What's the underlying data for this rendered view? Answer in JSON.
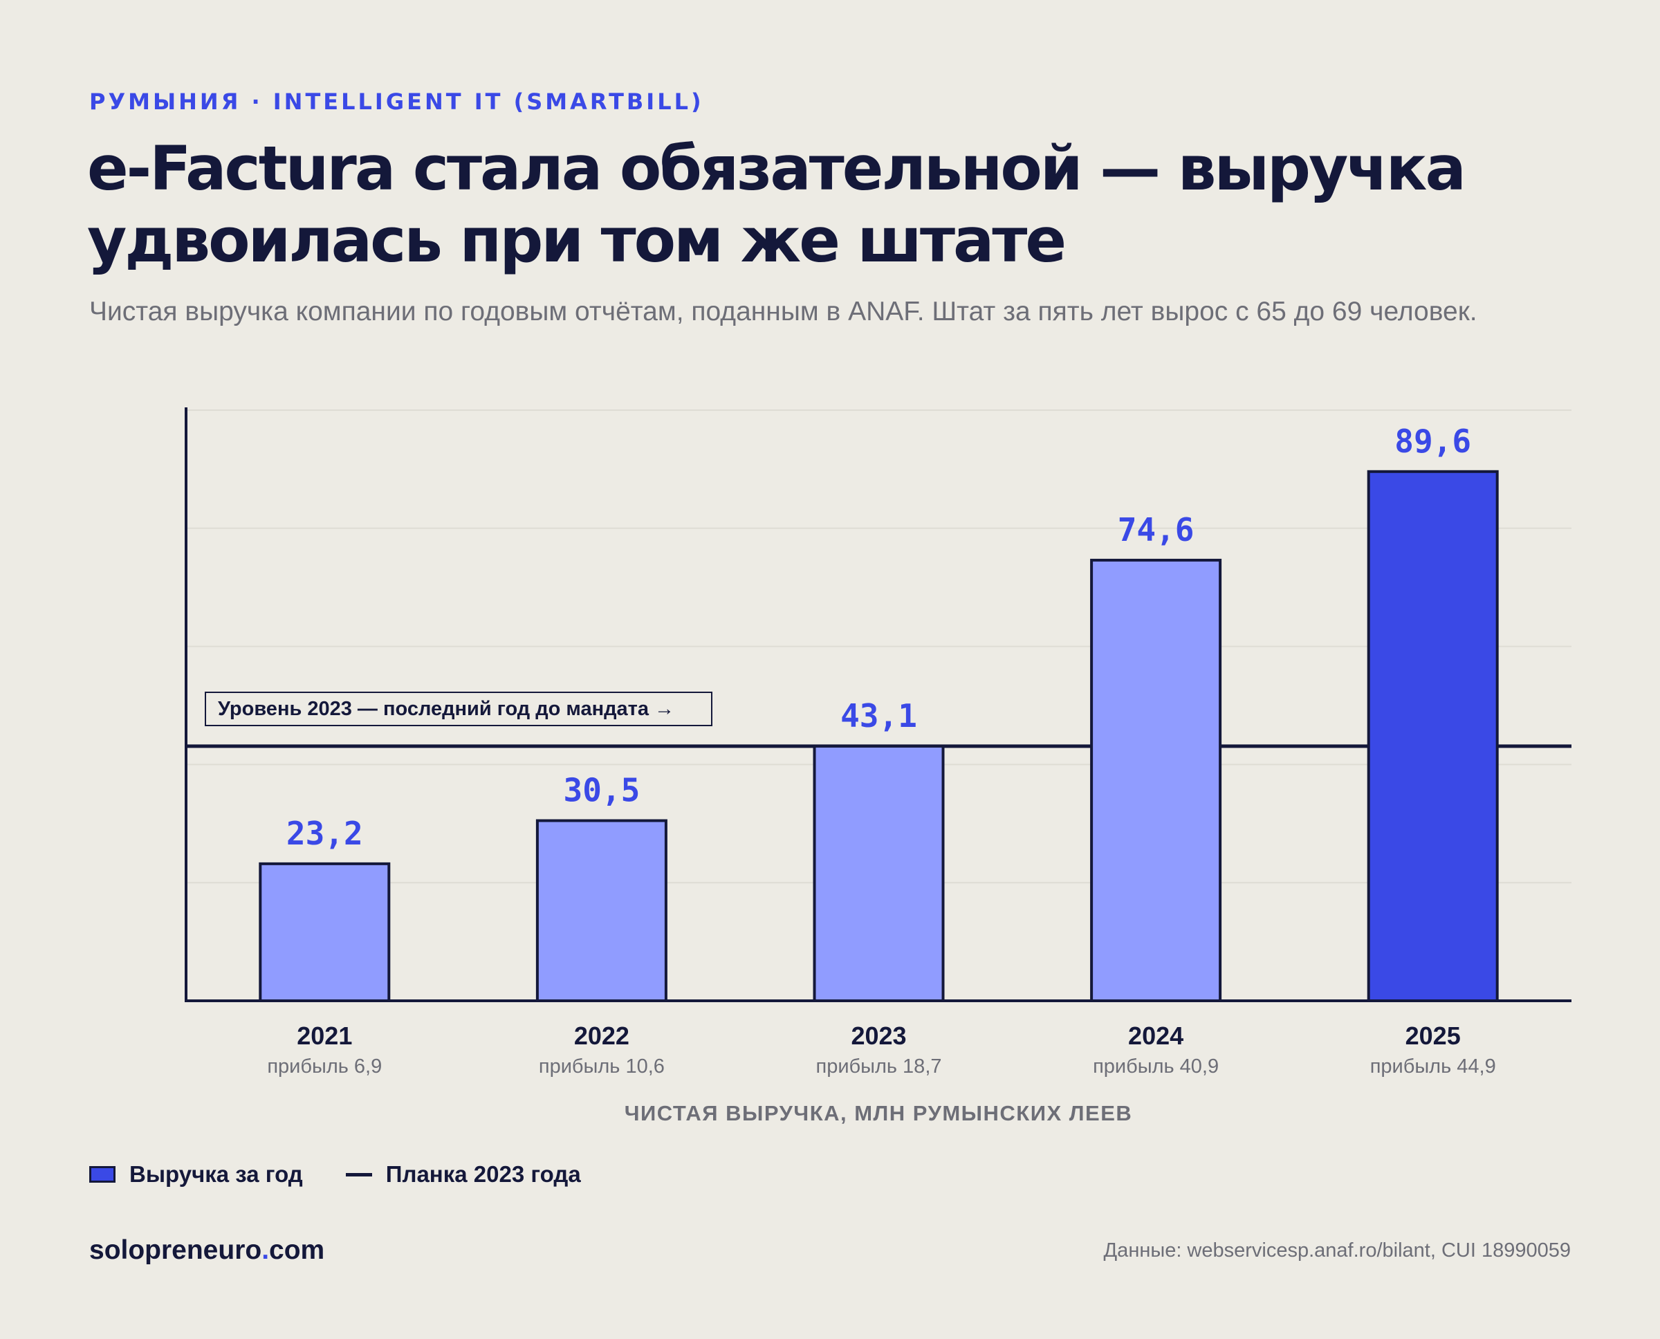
{
  "header": {
    "kicker": "РУМЫНИЯ · INTELLIGENT IT (SMARTBILL)",
    "title": "e-Factura стала обязательной — выручка удвоилась при том же штате",
    "subtitle": "Чистая выручка компании по годовым отчётам, поданным в ANAF. Штат за пять лет вырос с 65 до 69 человек."
  },
  "chart_data": {
    "type": "bar",
    "categories": [
      "2021",
      "2022",
      "2023",
      "2024",
      "2025"
    ],
    "values": [
      23.2,
      30.5,
      43.1,
      74.6,
      89.6
    ],
    "value_labels": [
      "23,2",
      "30,5",
      "43,1",
      "74,6",
      "89,6"
    ],
    "sublabels": [
      "прибыль 6,9",
      "прибыль 10,6",
      "прибыль 18,7",
      "прибыль 40,9",
      "прибыль 44,9"
    ],
    "highlight_index": 4,
    "xlabel": "ЧИСТАЯ ВЫРУЧКА, МЛН РУМЫНСКИХ ЛЕЕВ",
    "ylim": [
      0,
      100
    ],
    "gridlines": [
      20,
      40,
      60,
      80,
      100
    ],
    "reference_line": {
      "value": 43.1,
      "label": "Уровень 2023 — последний год до мандата →"
    },
    "colors": {
      "bar": "#909cff",
      "highlight": "#3a49e6",
      "outline": "#14183a",
      "value_label": "#3a49e6",
      "grid": "#dedcd4",
      "reference": "#14183a"
    },
    "grid": true
  },
  "legend": {
    "items": [
      {
        "label": "Выручка за год"
      },
      {
        "label": "Планка 2023 года"
      }
    ]
  },
  "footer": {
    "brand_main": "solopreneuro",
    "brand_accent": ".",
    "brand_tail": "com",
    "source": "Данные: webservicesp.anaf.ro/bilant, CUI 18990059"
  }
}
